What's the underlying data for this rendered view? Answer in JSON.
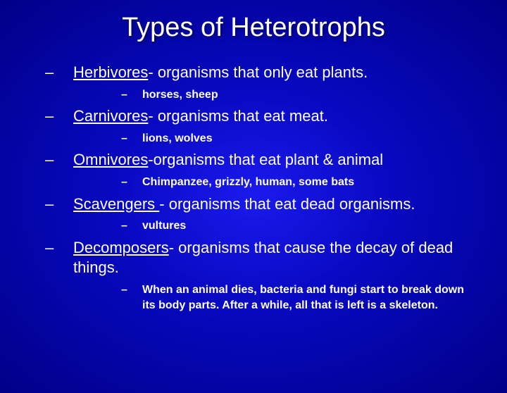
{
  "title": "Types of Heterotrophs",
  "colors": {
    "bg_center": "#1a1aee",
    "bg_mid": "#0808c0",
    "bg_edge": "#000088",
    "text": "#ffffff"
  },
  "typography": {
    "title_fontsize": 38,
    "item_fontsize": 22,
    "sub_fontsize": 16,
    "font_family": "Arial"
  },
  "items": [
    {
      "term": "Herbivores",
      "definition": "- organisms that only eat plants.",
      "sub": "horses, sheep"
    },
    {
      "term": "Carnivores",
      "definition": "- organisms that eat meat.",
      "sub": "lions, wolves"
    },
    {
      "term": "Omnivores",
      "definition": "-organisms that eat plant & animal",
      "sub": "Chimpanzee, grizzly,  human, some bats"
    },
    {
      "term": "Scavengers ",
      "definition": "- organisms that eat dead organisms.",
      "sub": "vultures"
    },
    {
      "term": "Decomposers",
      "definition": "- organisms that cause the decay of dead things.",
      "sub": " When an animal dies, bacteria and fungi start to break down its body parts.  After a while, all that is left is a skeleton."
    }
  ],
  "bullet": "–"
}
